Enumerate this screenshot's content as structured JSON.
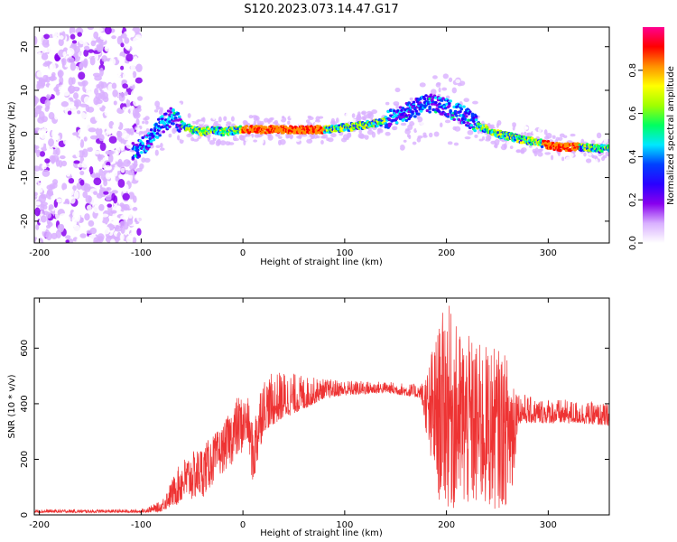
{
  "title": "S120.2023.073.14.47.G17",
  "chart_data": [
    {
      "type": "heatmap",
      "xlabel": "Height of straight line (km)",
      "ylabel": "Frequency (Hz)",
      "xlim": [
        -205,
        360
      ],
      "ylim": [
        -25,
        24.5
      ],
      "xticks": [
        "-200",
        "-100",
        "0",
        "100",
        "200",
        "300"
      ],
      "yticks": [
        "-20",
        "-10",
        "0",
        "10",
        "20"
      ],
      "colorbar": {
        "label": "Normalized spectral amplitude",
        "range": [
          0,
          1
        ],
        "ticks": [
          "0.0",
          "0.2",
          "0.4",
          "0.6",
          "0.8"
        ],
        "colormap": [
          "#ffffff",
          "#d9b0ff",
          "#8800ee",
          "#2a00ff",
          "#0040ff",
          "#00e8ff",
          "#00ff60",
          "#a0ff00",
          "#ffff00",
          "#ff9000",
          "#ff0000",
          "#ff0090"
        ]
      },
      "ridge": {
        "x": [
          -105,
          -95,
          -85,
          -75,
          -70,
          -60,
          -50,
          -40,
          -30,
          -20,
          0,
          50,
          80,
          100,
          120,
          140,
          150,
          160,
          170,
          180,
          190,
          200,
          210,
          220,
          230,
          250,
          270,
          290,
          310,
          330,
          360
        ],
        "freq": [
          -4,
          -2,
          1,
          3,
          4,
          2,
          1,
          0.5,
          1,
          0.5,
          1,
          1,
          1,
          1.5,
          2,
          3,
          4,
          5,
          6,
          7,
          7,
          6,
          5,
          4,
          2,
          0,
          -1,
          -2,
          -3,
          -3,
          -3.5
        ]
      }
    },
    {
      "type": "line",
      "xlabel": "Height of straight line (km)",
      "ylabel": "SNR (10 * v/v)",
      "xlim": [
        -205,
        360
      ],
      "ylim": [
        0,
        780
      ],
      "xticks": [
        "-200",
        "-100",
        "0",
        "100",
        "200",
        "300"
      ],
      "yticks": [
        "0",
        "200",
        "400",
        "600"
      ],
      "color": "#ee3333",
      "envelope": {
        "x": [
          -205,
          -100,
          -80,
          -60,
          -40,
          -20,
          -5,
          5,
          10,
          15,
          20,
          40,
          60,
          80,
          100,
          140,
          175,
          190,
          200,
          210,
          230,
          250,
          265,
          270,
          285,
          300,
          330,
          360
        ],
        "lo": [
          8,
          8,
          12,
          40,
          60,
          150,
          200,
          250,
          90,
          180,
          300,
          350,
          380,
          420,
          430,
          440,
          420,
          60,
          20,
          10,
          10,
          20,
          40,
          330,
          330,
          330,
          330,
          320
        ],
        "hi": [
          20,
          20,
          50,
          200,
          250,
          320,
          430,
          420,
          320,
          450,
          500,
          520,
          500,
          490,
          485,
          480,
          470,
          650,
          780,
          680,
          620,
          600,
          560,
          450,
          420,
          420,
          410,
          400
        ]
      }
    }
  ]
}
